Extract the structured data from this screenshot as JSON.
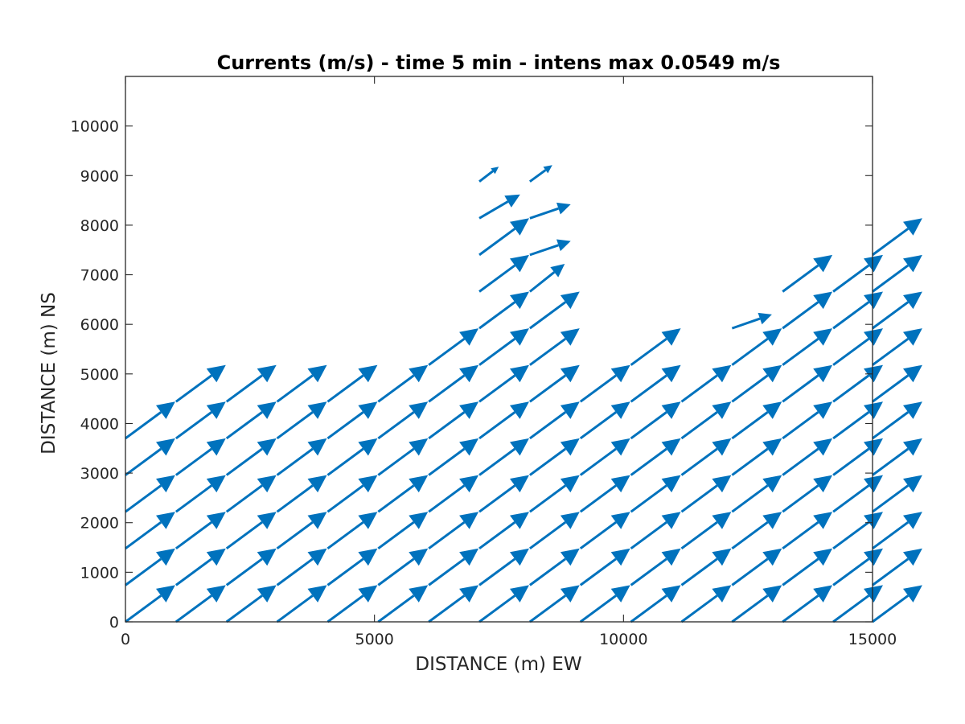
{
  "chart_data": {
    "type": "quiver",
    "title": "Currents (m/s) - time 5 min - intens max 0.0549 m/s",
    "xlabel": "DISTANCE (m) EW",
    "ylabel": "DISTANCE (m) NS",
    "xlim": [
      0,
      15000
    ],
    "ylim": [
      0,
      11000
    ],
    "xticks": [
      0,
      5000,
      10000,
      15000
    ],
    "xtick_labels": [
      "0",
      "5000",
      "10000",
      "15000"
    ],
    "yticks": [
      0,
      1000,
      2000,
      3000,
      4000,
      5000,
      6000,
      7000,
      8000,
      9000,
      10000
    ],
    "ytick_labels": [
      "0",
      "1000",
      "2000",
      "3000",
      "4000",
      "5000",
      "6000",
      "7000",
      "8000",
      "9000",
      "10000"
    ],
    "grid": false,
    "arrow_color": "#0072bd",
    "grid_x": [
      0,
      1015,
      2030,
      3045,
      4060,
      5075,
      6090,
      7105,
      8120,
      9135,
      10150,
      11165,
      12180,
      13195,
      14210,
      15000
    ],
    "grid_y": [
      0,
      740,
      1480,
      2220,
      2960,
      3700,
      4440,
      5180,
      5920,
      6660,
      7400,
      8140,
      8880
    ],
    "default_vector": {
      "u": 1000,
      "v": 740
    },
    "column_top_row": [
      5,
      6,
      6,
      6,
      6,
      6,
      7,
      12,
      12,
      6,
      7,
      6,
      8,
      9,
      9,
      10
    ],
    "special_vectors": [
      {
        "x": 0,
        "y": 5920,
        "u": 100,
        "v": 180
      },
      {
        "x": 0,
        "y": 5180,
        "u": 40,
        "v": 60
      },
      {
        "x": 1015,
        "y": 5180,
        "u": 650,
        "v": 700
      },
      {
        "x": 2030,
        "y": 5920,
        "u": 780,
        "v": 500
      },
      {
        "x": 3045,
        "y": 6660,
        "u": 160,
        "v": -30
      },
      {
        "x": 4060,
        "y": 5920,
        "u": 600,
        "v": 560
      },
      {
        "x": 6090,
        "y": 6660,
        "u": 850,
        "v": 290
      },
      {
        "x": 7105,
        "y": 8140,
        "u": 820,
        "v": 480
      },
      {
        "x": 7105,
        "y": 8880,
        "u": 390,
        "v": 300
      },
      {
        "x": 8120,
        "y": 7400,
        "u": 820,
        "v": 280
      },
      {
        "x": 8120,
        "y": 8140,
        "u": 820,
        "v": 280
      },
      {
        "x": 8120,
        "y": 8880,
        "u": 450,
        "v": 330
      },
      {
        "x": 8120,
        "y": 6660,
        "u": 700,
        "v": 560
      },
      {
        "x": 10150,
        "y": 5920,
        "u": 530,
        "v": 280
      },
      {
        "x": 11165,
        "y": 5180,
        "u": 440,
        "v": 740
      },
      {
        "x": 12180,
        "y": 5920,
        "u": 800,
        "v": 280
      },
      {
        "x": 12180,
        "y": 6660,
        "u": 750,
        "v": 580
      },
      {
        "x": 13195,
        "y": 8140,
        "u": 190,
        "v": 90
      },
      {
        "x": 14210,
        "y": 8140,
        "u": 170,
        "v": 690
      }
    ]
  }
}
